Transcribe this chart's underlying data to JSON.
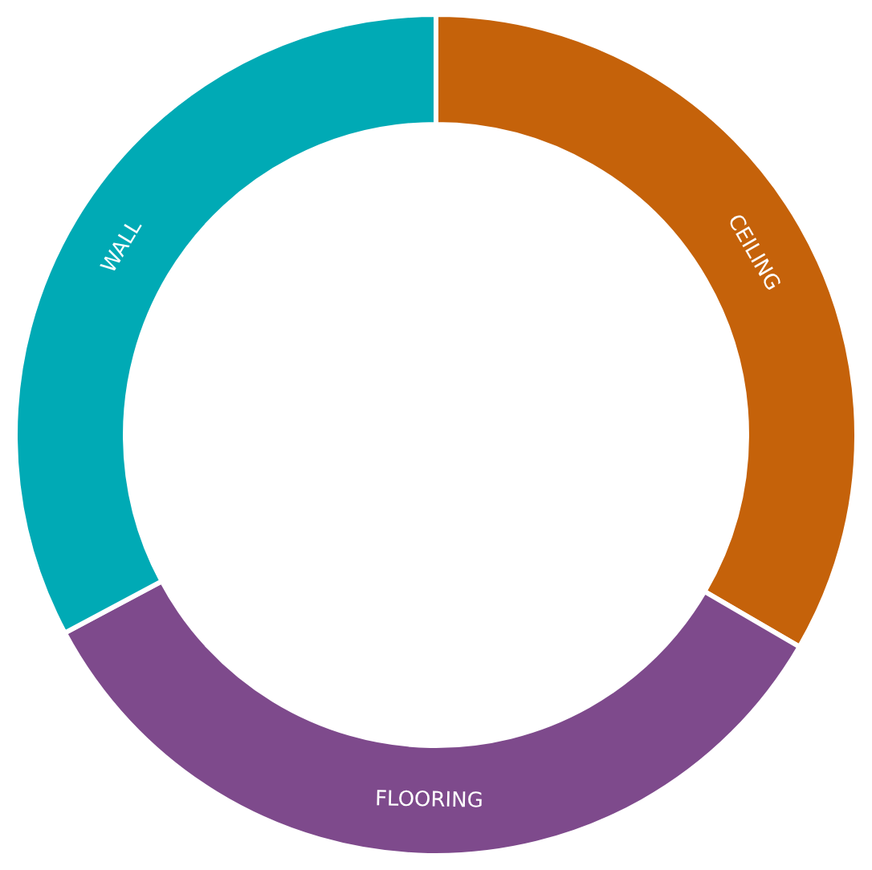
{
  "chart_data": {
    "type": "donut",
    "categories": [
      "CEILING",
      "FLOORING",
      "WALL"
    ],
    "values": [
      33.4,
      33.8,
      32.8
    ],
    "colors": [
      "#c5620a",
      "#7e4a8c",
      "#00aab5"
    ]
  }
}
